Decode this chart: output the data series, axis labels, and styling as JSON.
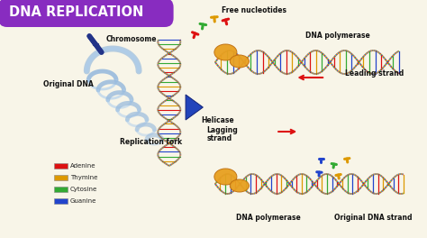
{
  "title": "DNA REPLICATION",
  "title_bg": "#882CC0",
  "title_color": "#FFFFFF",
  "bg_color": "#F8F5E8",
  "labels": {
    "chromosome": "Chromosome",
    "free_nucleotides": "Free nucleotides",
    "dna_polymerase_top": "DNA polymerase",
    "leading_strand": "Leading strand",
    "original_dna": "Original DNA",
    "helicase": "Helicase",
    "lagging_strand": "Lagging\nstrand",
    "replication_fork": "Replication fork",
    "dna_polymerase_bot": "DNA polymerase",
    "original_dna_strand": "Original DNA strand"
  },
  "legend": [
    {
      "label": "Adenine",
      "color": "#DD1111"
    },
    {
      "label": "Thymine",
      "color": "#DD9900"
    },
    {
      "label": "Cytosine",
      "color": "#33AA33"
    },
    {
      "label": "Guanine",
      "color": "#2244CC"
    }
  ],
  "dna_colors": [
    "#DD1111",
    "#DD9900",
    "#33AA33",
    "#2244CC"
  ],
  "gold_color": "#E8A020",
  "gold_dark": "#C07010",
  "helicase_color": "#2244BB",
  "arrow_color": "#DD1111",
  "chrom_color": "#223388",
  "coil_color": "#99BBDD",
  "coil_color2": "#AACCEE"
}
